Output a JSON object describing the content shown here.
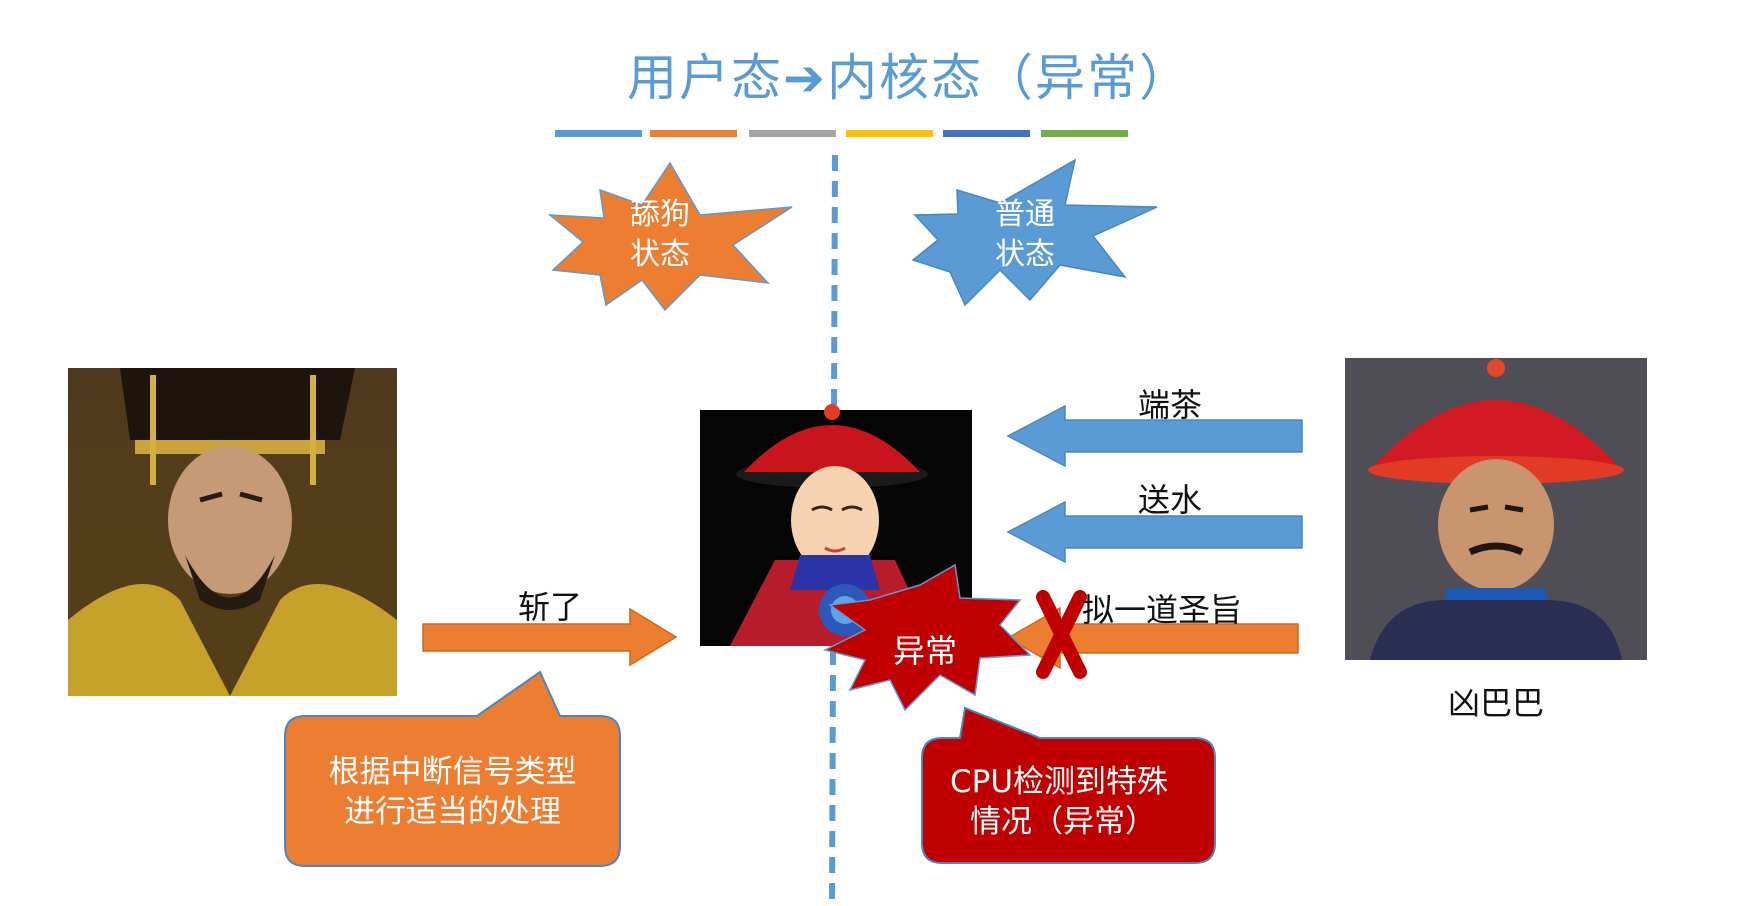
{
  "title": {
    "left": "用户态",
    "arrow": "➔",
    "right": "内核态（异常）"
  },
  "title_bar_colors": [
    "#5b9bd5",
    "#ed7d31",
    "#a5a5a5",
    "#ffc000",
    "#4472c4",
    "#70ad47"
  ],
  "states": {
    "user": {
      "line1": "舔狗",
      "line2": "状态",
      "color": "#ed7d31"
    },
    "kernel": {
      "line1": "普通",
      "line2": "状态",
      "color": "#5b9bd5"
    }
  },
  "arrows": {
    "duan_cha": "端茶",
    "song_shui": "送水",
    "ni_shengzhi": "拟一道圣旨",
    "zhan_le": "斩了"
  },
  "exception_burst": {
    "label": "异常",
    "color": "#c00000"
  },
  "characters": {
    "right_official_name": "凶巴巴"
  },
  "callouts": {
    "left": {
      "line1": "根据中断信号类型",
      "line2": "进行适当的处理",
      "color": "#ed7d31"
    },
    "right": {
      "line1": "CPU检测到特殊",
      "line2": "情况（异常）",
      "color": "#c00000"
    }
  },
  "colors": {
    "blue": "#5b9bd5",
    "orange": "#ed7d31",
    "red": "#c00000"
  }
}
